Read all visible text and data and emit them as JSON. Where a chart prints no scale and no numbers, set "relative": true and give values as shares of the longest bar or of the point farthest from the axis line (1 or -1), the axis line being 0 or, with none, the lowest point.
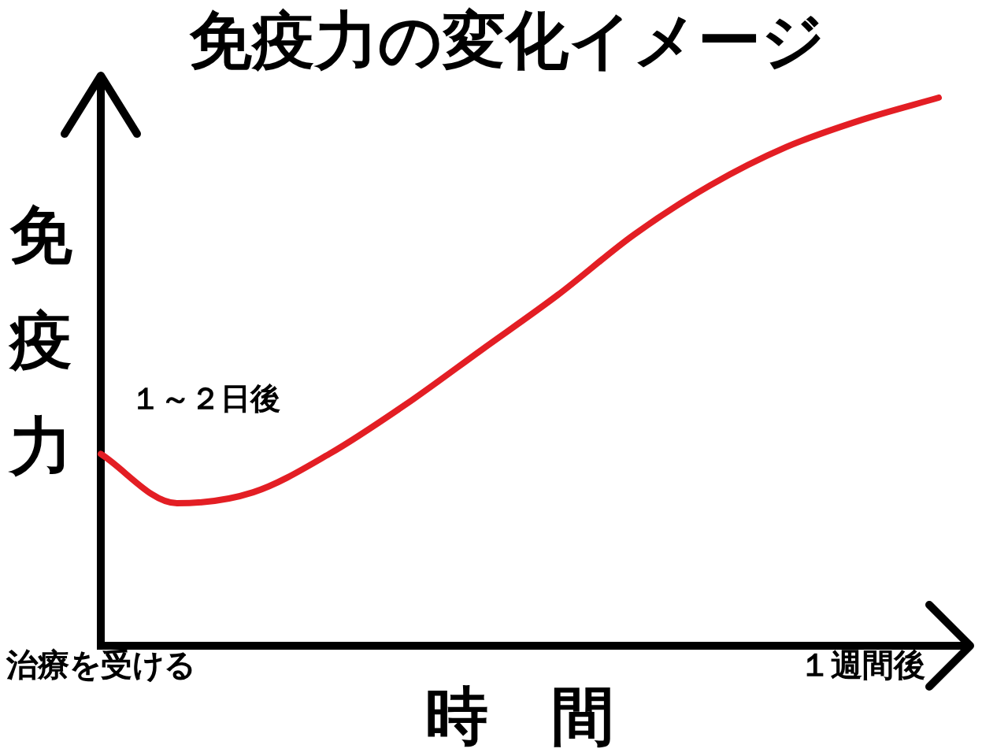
{
  "chart_data": {
    "type": "line",
    "title": "免疫力の変化イメージ",
    "xlabel": "時　間",
    "ylabel": "免疫力",
    "annotations": [
      "１～２日後"
    ],
    "categories": [
      "治療を受ける",
      null,
      null,
      null,
      null,
      null,
      null,
      null,
      null,
      null,
      "１週間後",
      null
    ],
    "series": [
      {
        "color": "#e31e24",
        "values": [
          0.35,
          0.26,
          0.28,
          0.35,
          0.44,
          0.54,
          0.64,
          0.75,
          0.84,
          0.91,
          0.96,
          1
        ]
      }
    ],
    "relative": true,
    "grid": false,
    "legend": false,
    "tick_labels": "x",
    "marker": "none"
  }
}
